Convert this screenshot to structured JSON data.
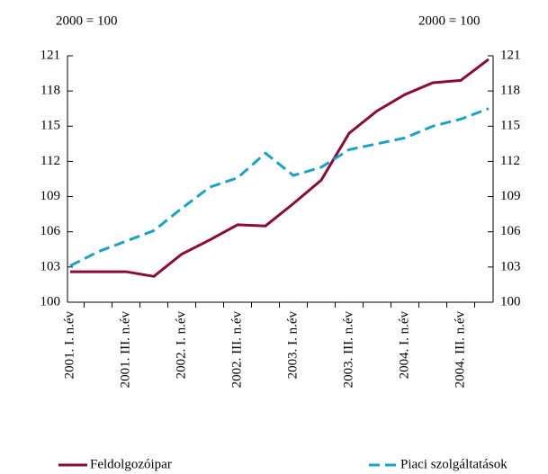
{
  "chart_data": {
    "type": "line",
    "y_label_left": "2000 = 100",
    "y_label_right": "2000 = 100",
    "categories": [
      "2001. I. n.év",
      null,
      "2001. III. n.év",
      null,
      "2002. I. n.év",
      null,
      "2002. III. n.év",
      null,
      "2003. I. n.év",
      null,
      "2003. III. n.év",
      null,
      "2004. I. n.év",
      null,
      "2004. III. n.év",
      null
    ],
    "series": [
      {
        "name": "Feldolgozóipar",
        "color": "#8b0a3a",
        "dashed": false,
        "values": [
          102.6,
          102.6,
          102.6,
          102.2,
          104.1,
          105.3,
          106.6,
          106.5,
          108.4,
          110.4,
          114.4,
          116.3,
          117.7,
          118.7,
          118.9,
          120.7
        ]
      },
      {
        "name": "Piaci szolgáltatások",
        "color": "#1aa3c8",
        "dashed": true,
        "values": [
          103.1,
          104.3,
          105.2,
          106.1,
          108.0,
          109.8,
          110.6,
          112.7,
          110.8,
          111.5,
          113.0,
          113.5,
          114.0,
          115.0,
          115.6,
          116.5
        ]
      }
    ],
    "ylim": [
      100,
      121
    ],
    "yticks": [
      100,
      103,
      106,
      109,
      112,
      115,
      118,
      121
    ],
    "y2lim": [
      100,
      121
    ],
    "y2ticks": [
      100,
      103,
      106,
      109,
      112,
      115,
      118,
      121
    ],
    "grid": false,
    "legend": "bottom"
  }
}
